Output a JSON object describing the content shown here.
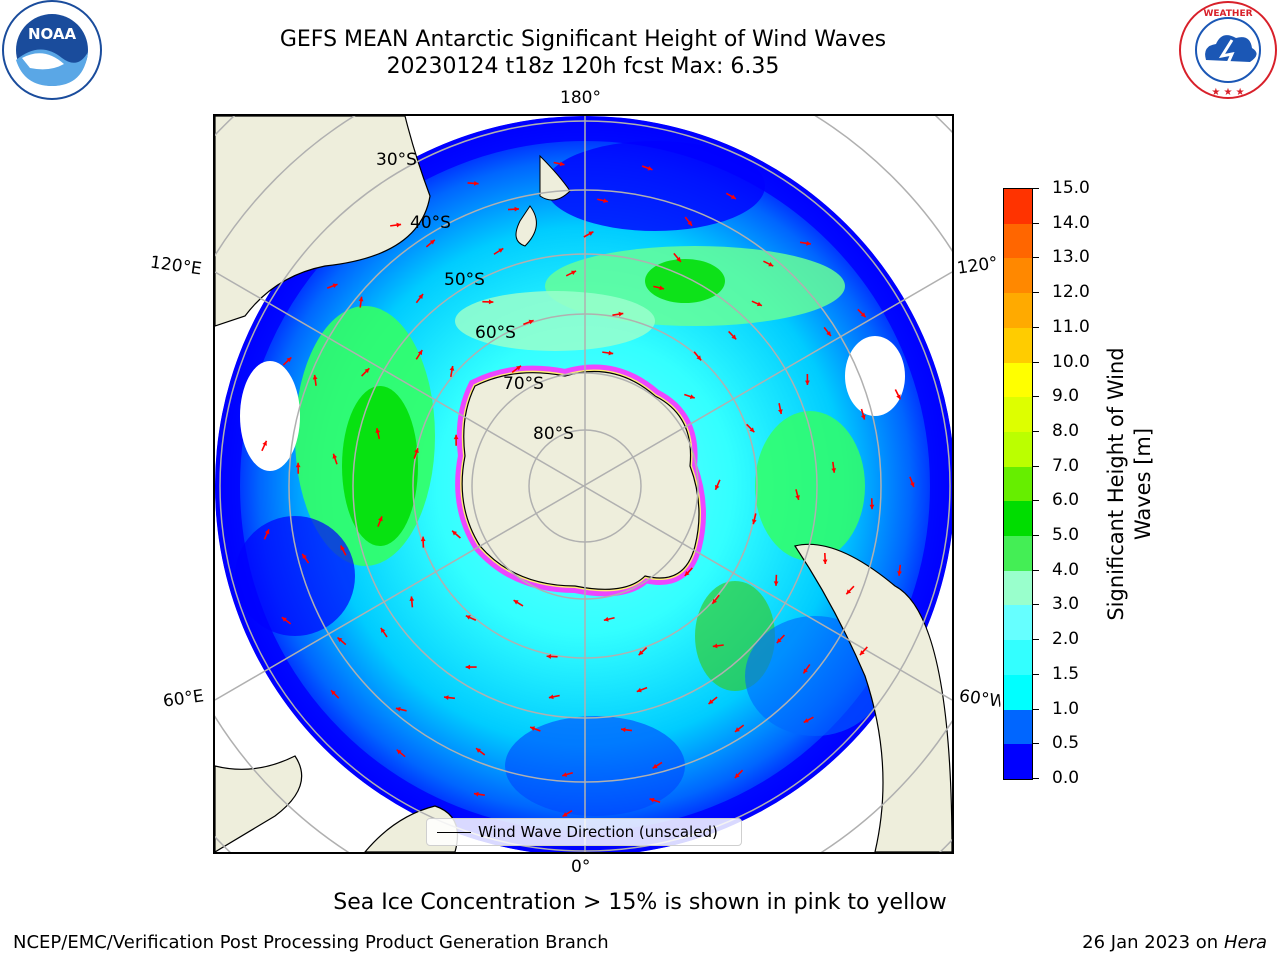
{
  "title": {
    "line1": "GEFS MEAN Antarctic Significant Height of Wind Waves",
    "line2": "20230124 t18z 120h fcst   Max: 6.35"
  },
  "logos": {
    "left": {
      "name": "NOAA",
      "ring_text": "NATIONAL OCEANIC AND ATMOSPHERIC ADMINISTRATION · U.S. DEPARTMENT OF COMMERCE",
      "color": "#1a4c9c"
    },
    "right": {
      "name": "NATIONAL WEATHER SERVICE",
      "color": "#d8202a"
    }
  },
  "map": {
    "projection": "south-polar-stereographic",
    "longitude_labels": {
      "top": "180°",
      "bottom": "0°",
      "upper_left": "120°E",
      "upper_right": "120°W",
      "lower_left": "60°E",
      "lower_right": "60°W"
    },
    "latitude_labels": [
      "30°S",
      "40°S",
      "50°S",
      "60°S",
      "70°S",
      "80°S"
    ],
    "land_color": "#eeeedc",
    "ice_color_range": [
      "#ff00ff",
      "#ffff66"
    ],
    "legend": {
      "line_label": "Wind Wave Direction (unscaled)"
    }
  },
  "colorbar": {
    "label": "Significant Height of Wind Waves [m]",
    "label_line1": "Significant Height of Wind",
    "label_line2": "Waves [m]",
    "ticks": [
      "0.0",
      "0.5",
      "1.0",
      "1.5",
      "2.0",
      "3.0",
      "4.0",
      "5.0",
      "6.0",
      "7.0",
      "8.0",
      "9.0",
      "10.0",
      "11.0",
      "12.0",
      "13.0",
      "14.0",
      "15.0"
    ],
    "colors": [
      "#0000ff",
      "#0066ff",
      "#00ffff",
      "#33ffff",
      "#66ffff",
      "#99ffcc",
      "#44ee55",
      "#00dd00",
      "#66ee00",
      "#bbff00",
      "#ddff00",
      "#ffff00",
      "#ffcc00",
      "#ffaa00",
      "#ff8800",
      "#ff6600",
      "#ff3300",
      "#ff0000"
    ]
  },
  "note": "Sea Ice Concentration > 15% is shown in pink to yellow",
  "footer": {
    "left": "NCEP/EMC/Verification Post Processing Product Generation Branch",
    "right_date": "26 Jan 2023 on ",
    "right_host": "Hera"
  }
}
